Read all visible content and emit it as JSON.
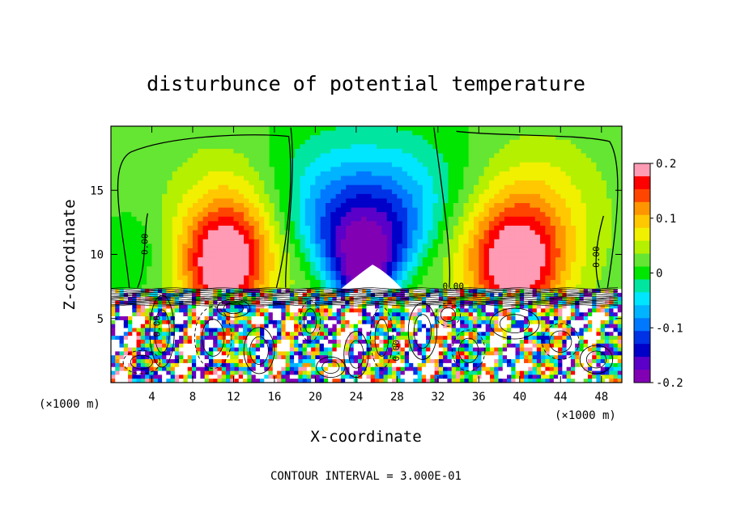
{
  "chart_data": {
    "type": "heatmap",
    "title": "disturbunce of potential temperature",
    "xlabel": "X-coordinate",
    "ylabel": "Z-coordinate",
    "x_unit": "(×1000 m)",
    "x_unit_right": "(×1000 m)",
    "xlim": [
      0,
      50
    ],
    "ylim": [
      0,
      20
    ],
    "x_ticks": [
      4,
      8,
      12,
      16,
      20,
      24,
      28,
      32,
      36,
      40,
      44,
      48
    ],
    "y_ticks": [
      5,
      10,
      15
    ],
    "colorbar": {
      "range": [
        -0.2,
        0.2
      ],
      "tick_values": [
        0.2,
        0.1,
        0,
        -0.1,
        -0.2
      ],
      "tick_labels": [
        "0.2",
        "0.1",
        "0",
        "-0.1",
        "-0.2"
      ],
      "colors": [
        "#ff9bb4",
        "#ff0000",
        "#ff4500",
        "#ff9600",
        "#ffc800",
        "#f0f000",
        "#b4f000",
        "#64e632",
        "#00e600",
        "#00e6a0",
        "#00e6ff",
        "#00b4ff",
        "#0078ff",
        "#0032e6",
        "#0000c8",
        "#5a00c8",
        "#8200b4"
      ]
    },
    "contour_labels": [
      "0.00",
      "0.00",
      "0.00",
      "0.00",
      "0.00"
    ],
    "footer": "CONTOUR INTERVAL = 3.000E-01"
  }
}
